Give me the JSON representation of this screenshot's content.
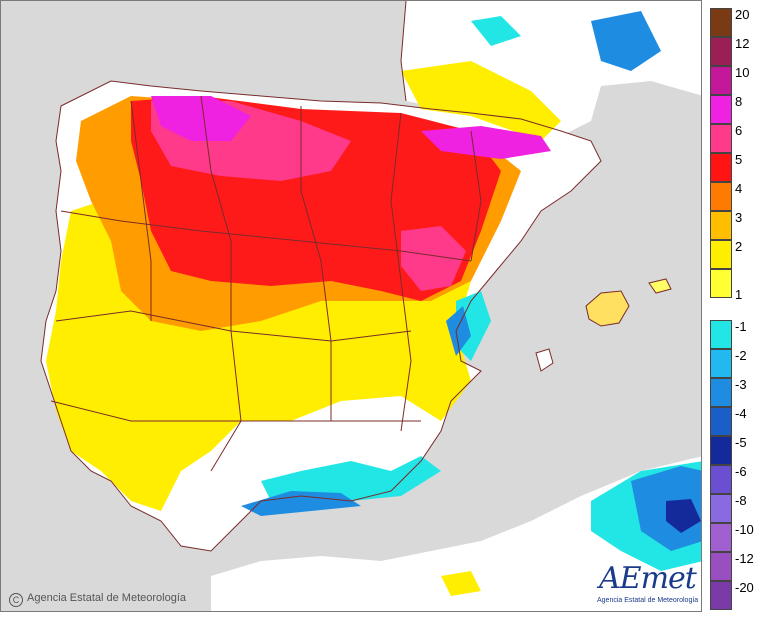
{
  "map": {
    "region": "Iberian Peninsula",
    "background_sea_color": "#d9d9d9",
    "background_land_color": "#ffffff",
    "border_color": "#7a2b2b"
  },
  "copyright": {
    "symbol": "C",
    "text": "Agencia Estatal de Meteorología"
  },
  "logo": {
    "word": "AEmet",
    "subtitle": "Agencia Estatal de Meteorología"
  },
  "legend": {
    "positive": [
      {
        "label": "20",
        "color": "#7a3a14"
      },
      {
        "label": "12",
        "color": "#9a1f55"
      },
      {
        "label": "10",
        "color": "#c4189a"
      },
      {
        "label": "8",
        "color": "#ee22e0"
      },
      {
        "label": "6",
        "color": "#ff3a8a"
      },
      {
        "label": "5",
        "color": "#ff1414"
      },
      {
        "label": "4",
        "color": "#ff7a00"
      },
      {
        "label": "3",
        "color": "#ffbf00"
      },
      {
        "label": "2",
        "color": "#ffee00"
      },
      {
        "label": "1",
        "color": "#ffff33"
      }
    ],
    "negative": [
      {
        "label": "-1",
        "color": "#22e6e6"
      },
      {
        "label": "-2",
        "color": "#22b8f0"
      },
      {
        "label": "-3",
        "color": "#1e8ce0"
      },
      {
        "label": "-4",
        "color": "#1a5ec8"
      },
      {
        "label": "-5",
        "color": "#142a9a"
      },
      {
        "label": "-6",
        "color": "#6a50d0"
      },
      {
        "label": "-8",
        "color": "#8a6ae0"
      },
      {
        "label": "-10",
        "color": "#a060d0"
      },
      {
        "label": "-12",
        "color": "#9a4fc0"
      },
      {
        "label": "-20",
        "color": "#7a3aa8"
      }
    ]
  }
}
